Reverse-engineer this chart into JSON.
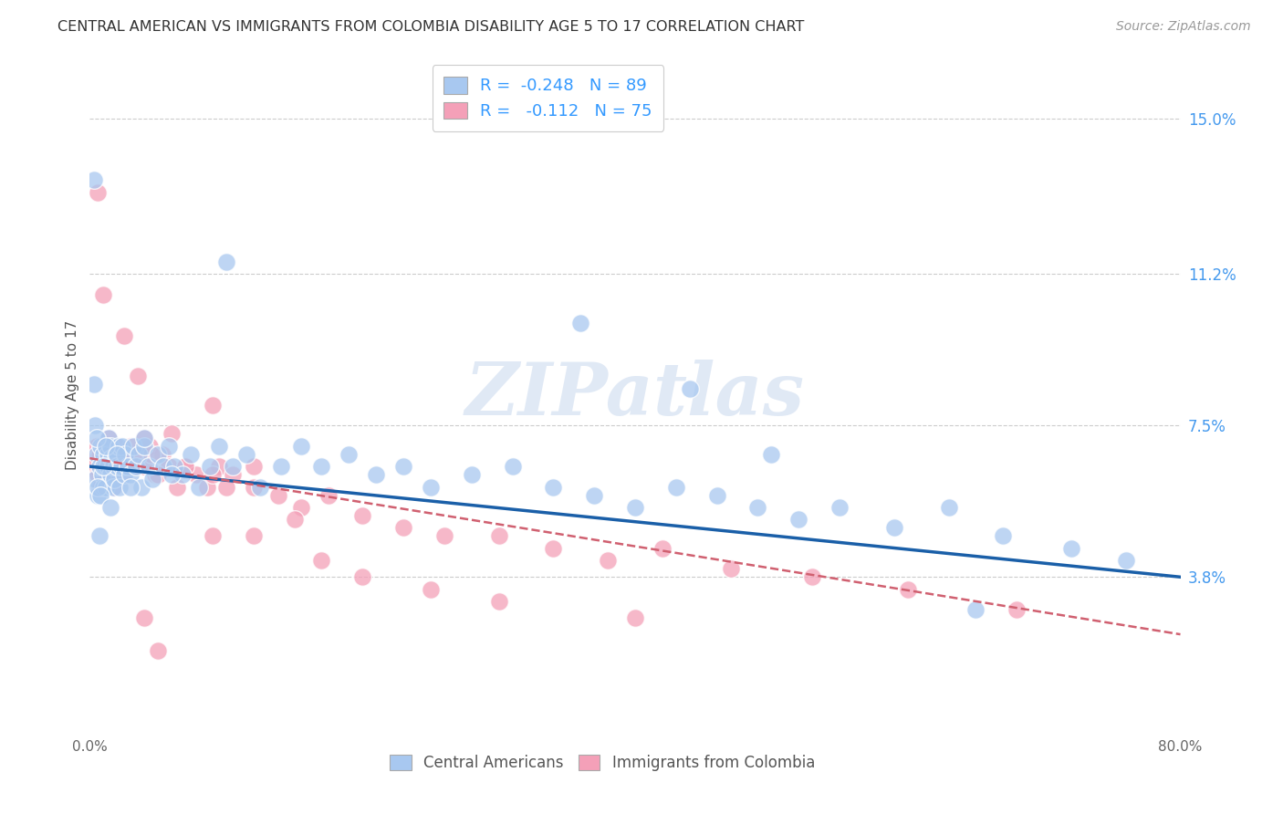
{
  "title": "CENTRAL AMERICAN VS IMMIGRANTS FROM COLOMBIA DISABILITY AGE 5 TO 17 CORRELATION CHART",
  "source": "Source: ZipAtlas.com",
  "ylabel": "Disability Age 5 to 17",
  "xlim": [
    0.0,
    0.8
  ],
  "ylim": [
    0.0,
    0.165
  ],
  "xticks": [
    0.0,
    0.2,
    0.4,
    0.6,
    0.8
  ],
  "xticklabels": [
    "0.0%",
    "",
    "",
    "",
    "80.0%"
  ],
  "ytick_positions": [
    0.038,
    0.075,
    0.112,
    0.15
  ],
  "ytick_labels": [
    "3.8%",
    "7.5%",
    "11.2%",
    "15.0%"
  ],
  "blue_color": "#a8c8f0",
  "pink_color": "#f4a0b8",
  "blue_line_color": "#1a5fa8",
  "pink_line_color": "#d06070",
  "R_blue": -0.248,
  "N_blue": 89,
  "R_pink": -0.112,
  "N_pink": 75,
  "watermark": "ZIPatlas",
  "legend_label_blue": "Central Americans",
  "legend_label_pink": "Immigrants from Colombia",
  "blue_line_x0": 0.0,
  "blue_line_y0": 0.065,
  "blue_line_x1": 0.8,
  "blue_line_y1": 0.038,
  "pink_line_x0": 0.0,
  "pink_line_y0": 0.067,
  "pink_line_x1": 0.8,
  "pink_line_y1": 0.024,
  "blue_x": [
    0.004,
    0.005,
    0.006,
    0.007,
    0.008,
    0.009,
    0.01,
    0.01,
    0.011,
    0.012,
    0.013,
    0.013,
    0.014,
    0.015,
    0.015,
    0.016,
    0.017,
    0.017,
    0.018,
    0.019,
    0.02,
    0.021,
    0.022,
    0.023,
    0.024,
    0.025,
    0.026,
    0.028,
    0.03,
    0.032,
    0.034,
    0.036,
    0.038,
    0.04,
    0.043,
    0.046,
    0.05,
    0.054,
    0.058,
    0.062,
    0.068,
    0.074,
    0.08,
    0.088,
    0.095,
    0.105,
    0.115,
    0.125,
    0.14,
    0.155,
    0.17,
    0.19,
    0.21,
    0.23,
    0.25,
    0.28,
    0.31,
    0.34,
    0.37,
    0.4,
    0.43,
    0.46,
    0.49,
    0.52,
    0.55,
    0.59,
    0.63,
    0.67,
    0.72,
    0.76,
    0.36,
    0.44,
    0.5,
    0.65,
    0.003,
    0.003,
    0.004,
    0.005,
    0.006,
    0.007,
    0.008,
    0.01,
    0.012,
    0.015,
    0.02,
    0.03,
    0.04,
    0.06,
    0.1
  ],
  "blue_y": [
    0.062,
    0.068,
    0.058,
    0.065,
    0.07,
    0.063,
    0.068,
    0.06,
    0.065,
    0.06,
    0.068,
    0.065,
    0.072,
    0.063,
    0.07,
    0.067,
    0.06,
    0.065,
    0.062,
    0.068,
    0.065,
    0.07,
    0.06,
    0.065,
    0.07,
    0.063,
    0.068,
    0.065,
    0.063,
    0.07,
    0.065,
    0.068,
    0.06,
    0.07,
    0.065,
    0.062,
    0.068,
    0.065,
    0.07,
    0.065,
    0.063,
    0.068,
    0.06,
    0.065,
    0.07,
    0.065,
    0.068,
    0.06,
    0.065,
    0.07,
    0.065,
    0.068,
    0.063,
    0.065,
    0.06,
    0.063,
    0.065,
    0.06,
    0.058,
    0.055,
    0.06,
    0.058,
    0.055,
    0.052,
    0.055,
    0.05,
    0.055,
    0.048,
    0.045,
    0.042,
    0.1,
    0.084,
    0.068,
    0.03,
    0.135,
    0.085,
    0.075,
    0.072,
    0.06,
    0.048,
    0.058,
    0.065,
    0.07,
    0.055,
    0.068,
    0.06,
    0.072,
    0.063,
    0.115
  ],
  "pink_x": [
    0.003,
    0.004,
    0.005,
    0.006,
    0.007,
    0.008,
    0.009,
    0.01,
    0.011,
    0.012,
    0.013,
    0.014,
    0.015,
    0.016,
    0.017,
    0.018,
    0.019,
    0.02,
    0.021,
    0.022,
    0.024,
    0.026,
    0.028,
    0.03,
    0.033,
    0.036,
    0.04,
    0.044,
    0.048,
    0.053,
    0.058,
    0.064,
    0.07,
    0.078,
    0.086,
    0.095,
    0.105,
    0.12,
    0.138,
    0.155,
    0.175,
    0.2,
    0.23,
    0.26,
    0.3,
    0.34,
    0.38,
    0.42,
    0.47,
    0.53,
    0.6,
    0.68,
    0.006,
    0.01,
    0.025,
    0.035,
    0.04,
    0.045,
    0.05,
    0.06,
    0.07,
    0.09,
    0.09,
    0.12,
    0.09,
    0.04,
    0.05,
    0.1,
    0.12,
    0.15,
    0.17,
    0.2,
    0.25,
    0.3,
    0.4
  ],
  "pink_y": [
    0.068,
    0.065,
    0.07,
    0.063,
    0.068,
    0.06,
    0.065,
    0.07,
    0.063,
    0.068,
    0.065,
    0.072,
    0.063,
    0.068,
    0.065,
    0.06,
    0.068,
    0.07,
    0.065,
    0.068,
    0.063,
    0.068,
    0.065,
    0.07,
    0.065,
    0.068,
    0.065,
    0.07,
    0.063,
    0.068,
    0.065,
    0.06,
    0.065,
    0.063,
    0.06,
    0.065,
    0.063,
    0.06,
    0.058,
    0.055,
    0.058,
    0.053,
    0.05,
    0.048,
    0.048,
    0.045,
    0.042,
    0.045,
    0.04,
    0.038,
    0.035,
    0.03,
    0.132,
    0.107,
    0.097,
    0.087,
    0.072,
    0.068,
    0.063,
    0.073,
    0.065,
    0.063,
    0.048,
    0.065,
    0.08,
    0.028,
    0.02,
    0.06,
    0.048,
    0.052,
    0.042,
    0.038,
    0.035,
    0.032,
    0.028
  ]
}
